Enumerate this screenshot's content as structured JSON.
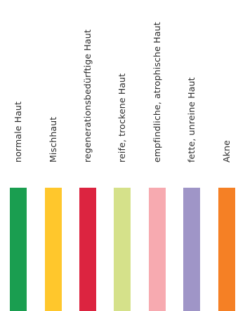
{
  "items": [
    {
      "label": "normale Haut",
      "color": "#1a9e50"
    },
    {
      "label": "Mischhaut",
      "color": "#ffc72c"
    },
    {
      "label": "regenerationsbedürftige Haut",
      "color": "#dc2440"
    },
    {
      "label": "reife, trockene Haut",
      "color": "#d5e18a"
    },
    {
      "label": "empfindliche, atrophische Haut",
      "color": "#f7aab0"
    },
    {
      "label": "fette, unreine Haut",
      "color": "#9f95c7"
    },
    {
      "label": "Akne",
      "color": "#f58025"
    }
  ]
}
